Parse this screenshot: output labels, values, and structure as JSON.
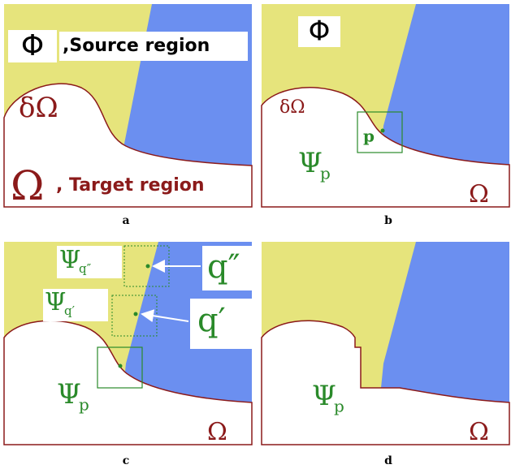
{
  "panels": [
    {
      "caption": "a",
      "labels": {
        "phi": "Φ",
        "source": ",Source region",
        "boundary": "δΩ",
        "omega": "Ω",
        "target": ", Target region"
      }
    },
    {
      "caption": "b",
      "labels": {
        "phi": "Φ",
        "boundary": "δΩ",
        "point": "p",
        "patch": "Ψ",
        "patch_sub": "p",
        "omega": "Ω"
      }
    },
    {
      "caption": "c",
      "labels": {
        "patch_q2": "Ψ",
        "patch_q2_sub": "q″",
        "point_q2": "q″",
        "patch_q1": "Ψ",
        "patch_q1_sub": "q′",
        "point_q1": "q′",
        "patch": "Ψ",
        "patch_sub": "p",
        "omega": "Ω"
      }
    },
    {
      "caption": "d",
      "labels": {
        "patch": "Ψ",
        "patch_sub": "p",
        "omega": "Ω"
      }
    }
  ]
}
